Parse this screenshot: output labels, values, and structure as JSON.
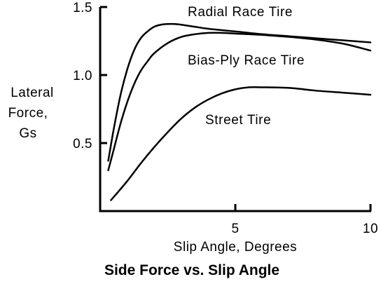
{
  "chart_data": {
    "type": "line",
    "title": "Side Force vs. Slip Angle",
    "xlabel": "Slip Angle, Degrees",
    "ylabel": [
      "Lateral",
      "Force,",
      "Gs"
    ],
    "xlim": [
      0,
      10
    ],
    "ylim": [
      0,
      1.5
    ],
    "xticks": [
      5,
      10
    ],
    "xtick_labels": [
      "5",
      "10"
    ],
    "yticks": [
      0.5,
      1.0,
      1.5
    ],
    "ytick_labels": [
      "0.5",
      "1.0",
      "1.5"
    ],
    "grid": false,
    "legend": "none (series labeled directly on curves)",
    "colors": {
      "line": "#000000",
      "background": "#ffffff"
    },
    "series": [
      {
        "name": "Radial Race Tire",
        "x": [
          0.3,
          0.5,
          0.75,
          1.0,
          1.25,
          1.5,
          1.75,
          2.0,
          2.25,
          2.5,
          2.75,
          3.0,
          3.5,
          4.0,
          5.0,
          6.0,
          7.0,
          8.0,
          9.0,
          10.0
        ],
        "y": [
          0.37,
          0.6,
          0.85,
          1.04,
          1.18,
          1.27,
          1.32,
          1.355,
          1.37,
          1.375,
          1.375,
          1.37,
          1.355,
          1.34,
          1.32,
          1.3,
          1.285,
          1.27,
          1.255,
          1.24
        ]
      },
      {
        "name": "Bias-Ply Race Tire",
        "x": [
          0.3,
          0.5,
          0.75,
          1.0,
          1.25,
          1.5,
          1.75,
          2.0,
          2.5,
          3.0,
          3.5,
          4.0,
          4.5,
          5.0,
          6.0,
          7.0,
          8.0,
          9.0,
          10.0
        ],
        "y": [
          0.3,
          0.45,
          0.64,
          0.8,
          0.93,
          1.03,
          1.1,
          1.16,
          1.235,
          1.28,
          1.3,
          1.31,
          1.31,
          1.305,
          1.295,
          1.28,
          1.26,
          1.23,
          1.18
        ]
      },
      {
        "name": "Street Tire",
        "x": [
          0.4,
          1.0,
          1.5,
          2.0,
          2.5,
          3.0,
          3.5,
          4.0,
          4.5,
          5.0,
          5.5,
          6.0,
          7.0,
          8.0,
          9.0,
          10.0
        ],
        "y": [
          0.08,
          0.22,
          0.35,
          0.47,
          0.58,
          0.68,
          0.76,
          0.82,
          0.865,
          0.895,
          0.91,
          0.91,
          0.905,
          0.885,
          0.87,
          0.855
        ]
      }
    ]
  }
}
